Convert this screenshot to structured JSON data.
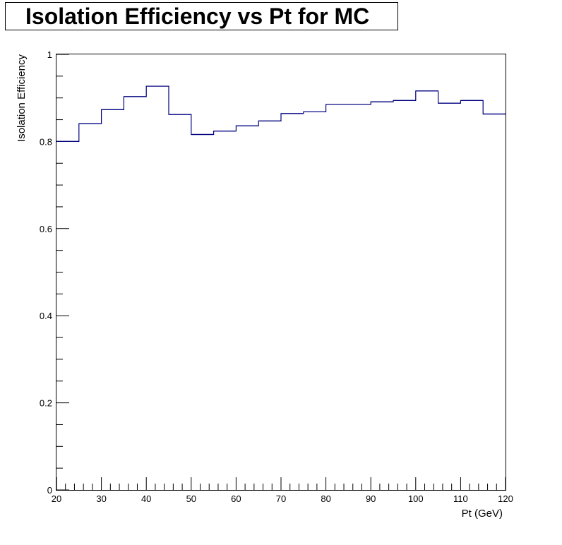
{
  "title": "Isolation Efficiency vs Pt for MC",
  "chart_data": {
    "type": "line",
    "style": "step-histogram",
    "title": "Isolation Efficiency vs Pt for MC",
    "xlabel": "Pt (GeV)",
    "ylabel": "Isolation Efficiency",
    "xlim": [
      20,
      120
    ],
    "ylim": [
      0,
      1
    ],
    "bin_edges": [
      20,
      25,
      30,
      35,
      40,
      45,
      50,
      55,
      60,
      65,
      70,
      75,
      80,
      85,
      90,
      95,
      100,
      105,
      110,
      115,
      120
    ],
    "values": [
      0.8,
      0.841,
      0.873,
      0.903,
      0.927,
      0.862,
      0.816,
      0.824,
      0.836,
      0.847,
      0.864,
      0.868,
      0.885,
      0.885,
      0.891,
      0.894,
      0.916,
      0.888,
      0.894,
      0.863
    ],
    "x_ticks": [
      "20",
      "30",
      "40",
      "50",
      "60",
      "70",
      "80",
      "90",
      "100",
      "110",
      "120"
    ],
    "y_ticks": [
      "0",
      "0.2",
      "0.4",
      "0.6",
      "0.8",
      "1"
    ],
    "line_color": "#000080",
    "grid": false,
    "legend": "none"
  }
}
